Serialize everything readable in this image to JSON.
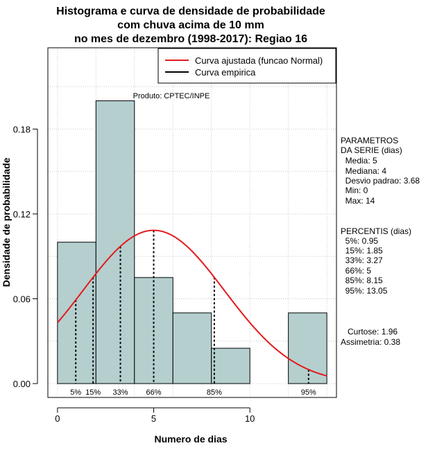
{
  "chart_data": {
    "type": "bar",
    "title_lines": [
      "Histograma e curva de densidade de probabilidade",
      "com chuva acima de 10 mm",
      "no mes de dezembro (1998-2017): Regiao 16"
    ],
    "xlabel": "Numero de dias",
    "ylabel": "Densidade de probabilidade",
    "xlim": [
      -0.5,
      14.5
    ],
    "ylim": [
      -0.0098,
      0.2375
    ],
    "x_ticks": [
      0,
      5,
      10
    ],
    "y_ticks": [
      0.0,
      0.06,
      0.12,
      0.18
    ],
    "y_tick_labels": [
      "0.00",
      "0.06",
      "0.12",
      "0.18"
    ],
    "bins": [
      {
        "from": 0,
        "to": 2,
        "density": 0.1
      },
      {
        "from": 2,
        "to": 4,
        "density": 0.2
      },
      {
        "from": 4,
        "to": 6,
        "density": 0.075
      },
      {
        "from": 6,
        "to": 8,
        "density": 0.05
      },
      {
        "from": 8,
        "to": 10,
        "density": 0.025
      },
      {
        "from": 10,
        "to": 12,
        "density": 0.0
      },
      {
        "from": 12,
        "to": 14,
        "density": 0.05
      }
    ],
    "normal_fit": {
      "mean": 5,
      "sd": 3.68,
      "x_from": 0,
      "x_to": 14,
      "color": "#e31a1c"
    },
    "percentile_lines": [
      {
        "label": "5%",
        "x": 0.95
      },
      {
        "label": "15%",
        "x": 1.85
      },
      {
        "label": "33%",
        "x": 3.27
      },
      {
        "label": "66%",
        "x": 5
      },
      {
        "label": "85%",
        "x": 8.15
      },
      {
        "label": "95%",
        "x": 13.05
      }
    ],
    "legend": {
      "position": "top-right",
      "entries": [
        {
          "label": "Curva ajustada (funcao Normal)",
          "color": "#e31a1c"
        },
        {
          "label": "Curva empirica",
          "color": "#000000"
        }
      ]
    },
    "annotation": "Produto: CPTEC/INPE",
    "grid": true,
    "bar_color": "#b5cfcf"
  },
  "side_panel": {
    "params_lines": [
      "PARAMETROS",
      "DA SERIE (dias)",
      "  Media: 5",
      "  Mediana: 4",
      "  Desvio padrao: 3.68",
      "  Min: 0",
      "  Max: 14"
    ],
    "percentis_lines": [
      "PERCENTIS (dias)",
      "  5%: 0.95",
      "  15%: 1.85",
      "  33%: 3.27",
      "  66%: 5",
      "  85%: 8.15",
      "  95%: 13.05"
    ],
    "shape_lines": [
      "   Curtose: 1.96",
      "Assimetria: 0.38"
    ]
  }
}
